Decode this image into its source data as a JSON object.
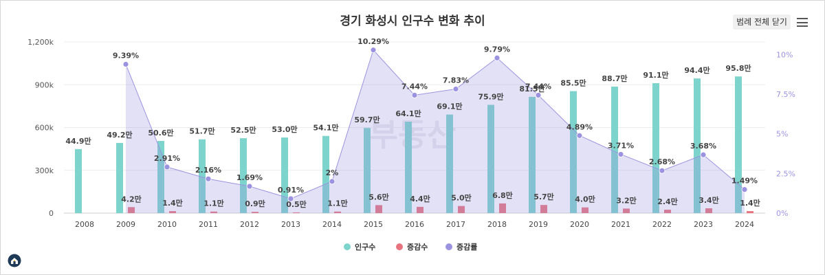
{
  "chart_data": {
    "type": "bar-line-combo",
    "title": "경기 화성시 인구수 변화 추이",
    "categories": [
      "2008",
      "2009",
      "2010",
      "2011",
      "2012",
      "2013",
      "2014",
      "2015",
      "2016",
      "2017",
      "2018",
      "2019",
      "2020",
      "2021",
      "2022",
      "2023",
      "2024"
    ],
    "y_left": {
      "ticks": [
        "0",
        "300k",
        "600k",
        "900k",
        "1,200k"
      ],
      "tick_values": [
        0,
        300000,
        600000,
        900000,
        1200000
      ],
      "range": [
        0,
        1200000
      ]
    },
    "y_right": {
      "ticks": [
        "0%",
        "2.5%",
        "5%",
        "7.5%",
        "10%"
      ],
      "tick_values": [
        0,
        2.5,
        5,
        7.5,
        10
      ],
      "range": [
        0,
        10.8
      ]
    },
    "series": [
      {
        "name": "인구수",
        "type": "bar",
        "color": "#7dd4cc",
        "values": [
          449000,
          492000,
          506000,
          517000,
          525000,
          530000,
          541000,
          597000,
          641000,
          691000,
          759000,
          815000,
          855000,
          887000,
          911000,
          944000,
          958000
        ],
        "labels": [
          "44.9만",
          "49.2만",
          "50.6만",
          "51.7만",
          "52.5만",
          "53.0만",
          "54.1만",
          "59.7만",
          "64.1만",
          "69.1만",
          "75.9만",
          "81.5만",
          "85.5만",
          "88.7만",
          "91.1만",
          "94.4만",
          "95.8만"
        ]
      },
      {
        "name": "증감수",
        "type": "bar",
        "color": "#e8737f",
        "values": [
          null,
          42000,
          14000,
          11000,
          9000,
          5000,
          11000,
          56000,
          44000,
          50000,
          68000,
          57000,
          40000,
          32000,
          24000,
          34000,
          14000
        ],
        "labels": [
          "",
          "4.2만",
          "1.4만",
          "1.1만",
          "0.9만",
          "0.5만",
          "1.1만",
          "5.6만",
          "4.4만",
          "5.0만",
          "6.8만",
          "5.7만",
          "4.0만",
          "3.2만",
          "2.4만",
          "3.4만",
          "1.4만"
        ]
      },
      {
        "name": "증감률",
        "type": "area",
        "color": "#9b93e0",
        "values": [
          null,
          9.39,
          2.91,
          2.16,
          1.69,
          0.91,
          2,
          10.29,
          7.44,
          7.83,
          9.79,
          7.44,
          4.89,
          3.71,
          2.68,
          3.68,
          1.49
        ],
        "labels": [
          "",
          "9.39%",
          "2.91%",
          "2.16%",
          "1.69%",
          "0.91%",
          "2%",
          "10.29%",
          "7.44%",
          "7.83%",
          "9.79%",
          "7.44%",
          "4.89%",
          "3.71%",
          "2.68%",
          "3.68%",
          "1.49%"
        ]
      }
    ],
    "legend_position": "bottom-center"
  },
  "ui": {
    "legend_toggle_label": "범례 전체 닫기",
    "menu_icon": "hamburger-menu-icon",
    "home_icon": "home-logo-icon",
    "watermark": "부동산"
  }
}
